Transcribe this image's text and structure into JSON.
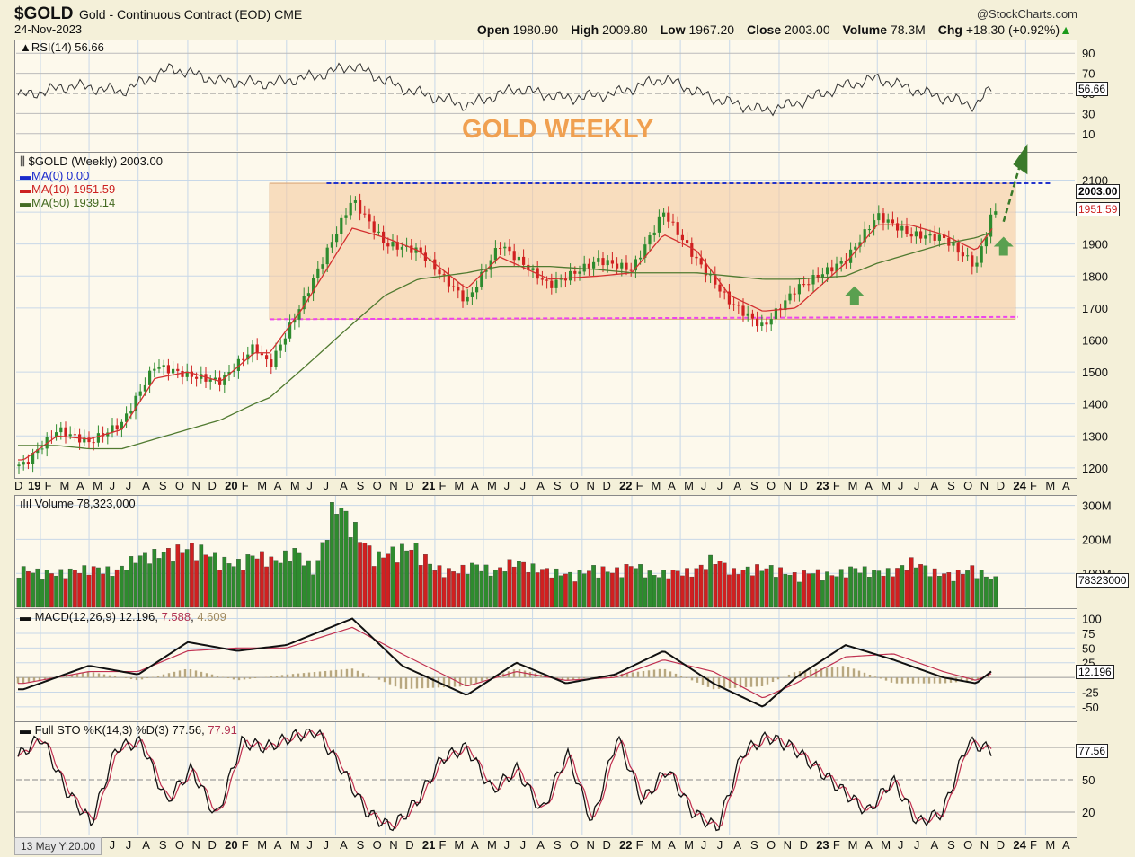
{
  "header": {
    "symbol": "$GOLD",
    "description": "Gold - Continuous Contract (EOD)",
    "exchange": "CME",
    "date": "24-Nov-2023",
    "brand": "@StockCharts.com",
    "open_label": "Open",
    "open": "1980.90",
    "high_label": "High",
    "high": "2009.80",
    "low_label": "Low",
    "low": "1967.20",
    "close_label": "Close",
    "close": "2003.00",
    "volume_label": "Volume",
    "volume": "78.3M",
    "chg_label": "Chg",
    "chg": "+18.30 (+0.92%)"
  },
  "colors": {
    "up": "#2e8b2e",
    "down": "#d02020",
    "ma10": "#d33030",
    "ma50": "#507a30",
    "range": "#f5c9a0",
    "resistance": "#2233cc",
    "support": "#ee44ee",
    "arrow": "#5aa050"
  },
  "chart_data": [
    {
      "type": "line",
      "panel": "RSI",
      "legend": "RSI(14) 56.66",
      "yticks": [
        90,
        70,
        50,
        30,
        10
      ],
      "ylim": [
        0,
        100
      ],
      "last": "56.66",
      "x": [
        "2018-12",
        "2019-03",
        "2019-06",
        "2019-09",
        "2019-12",
        "2020-03",
        "2020-06",
        "2020-08",
        "2020-11",
        "2021-03",
        "2021-06",
        "2021-09",
        "2021-12",
        "2022-03",
        "2022-06",
        "2022-09",
        "2022-11",
        "2023-02",
        "2023-04",
        "2023-07",
        "2023-10",
        "2023-11"
      ],
      "values": [
        48,
        58,
        52,
        75,
        62,
        60,
        68,
        78,
        55,
        38,
        55,
        45,
        50,
        65,
        45,
        33,
        40,
        58,
        65,
        50,
        38,
        57
      ]
    },
    {
      "type": "candlestick",
      "panel": "Price",
      "title": "GOLD WEEKLY",
      "legend": [
        "$GOLD (Weekly) 2003.00",
        "MA(0) 0.00",
        "MA(10) 1951.59",
        "MA(50) 1939.14"
      ],
      "yticks": [
        2100,
        2000,
        1900,
        1800,
        1700,
        1600,
        1500,
        1400,
        1300,
        1200
      ],
      "ylim": [
        1180,
        2180
      ],
      "last_price": "2003.00",
      "last_ma": "1951.59",
      "resistance": 2090,
      "support": 1665,
      "x": [
        "2018-12",
        "2019-02",
        "2019-04",
        "2019-06",
        "2019-08",
        "2019-10",
        "2019-12",
        "2020-02",
        "2020-03",
        "2020-05",
        "2020-08",
        "2020-10",
        "2020-12",
        "2021-03",
        "2021-05",
        "2021-08",
        "2021-11",
        "2022-01",
        "2022-03",
        "2022-05",
        "2022-07",
        "2022-09",
        "2022-11",
        "2023-02",
        "2023-04",
        "2023-06",
        "2023-08",
        "2023-10",
        "2023-11"
      ],
      "close": [
        1210,
        1320,
        1280,
        1340,
        1520,
        1490,
        1470,
        1580,
        1520,
        1720,
        2040,
        1900,
        1880,
        1720,
        1900,
        1770,
        1850,
        1820,
        2000,
        1850,
        1720,
        1640,
        1760,
        1850,
        1990,
        1930,
        1920,
        1830,
        2003
      ],
      "ma10": [
        1225,
        1300,
        1290,
        1320,
        1480,
        1500,
        1470,
        1560,
        1560,
        1700,
        1950,
        1920,
        1880,
        1760,
        1860,
        1790,
        1800,
        1810,
        1930,
        1880,
        1740,
        1690,
        1700,
        1840,
        1960,
        1960,
        1930,
        1880,
        1951
      ],
      "ma50": [
        1270,
        1270,
        1260,
        1260,
        1290,
        1320,
        1350,
        1400,
        1420,
        1510,
        1650,
        1740,
        1790,
        1810,
        1830,
        1830,
        1820,
        1810,
        1810,
        1810,
        1800,
        1790,
        1790,
        1800,
        1840,
        1870,
        1900,
        1920,
        1939
      ]
    },
    {
      "type": "bar",
      "panel": "Volume",
      "legend": "Volume 78,323,000",
      "yticks": [
        "300M",
        "200M",
        "100M"
      ],
      "ylim": [
        0,
        320
      ],
      "last": "78323000",
      "values": [
        110,
        100,
        95,
        105,
        110,
        100,
        140,
        150,
        160,
        170,
        140,
        120,
        150,
        130,
        160,
        100,
        300,
        220,
        140,
        160,
        170,
        110,
        100,
        120,
        100,
        130,
        110,
        100,
        90,
        110,
        100,
        120,
        90,
        100,
        100,
        140,
        100,
        110,
        110,
        90,
        100,
        90,
        110,
        100,
        100,
        130,
        100,
        90,
        110,
        80
      ]
    },
    {
      "type": "line",
      "panel": "MACD",
      "legend": [
        "MACD(12,26,9)",
        "12.196",
        "7.588",
        "4.609"
      ],
      "yticks": [
        100,
        75,
        50,
        25,
        0,
        -25,
        -50
      ],
      "ylim": [
        -70,
        110
      ],
      "last": "12.196",
      "x": [
        "2018-12",
        "2019-04",
        "2019-07",
        "2019-10",
        "2020-01",
        "2020-04",
        "2020-08",
        "2020-11",
        "2021-03",
        "2021-06",
        "2021-09",
        "2021-12",
        "2022-03",
        "2022-06",
        "2022-09",
        "2022-11",
        "2023-02",
        "2023-05",
        "2023-08",
        "2023-10",
        "2023-11"
      ],
      "macd": [
        -20,
        20,
        5,
        60,
        45,
        55,
        100,
        20,
        -30,
        25,
        -10,
        5,
        45,
        -10,
        -50,
        0,
        55,
        30,
        0,
        -10,
        12.2
      ],
      "signal": [
        -10,
        10,
        10,
        45,
        50,
        50,
        85,
        40,
        -15,
        10,
        -5,
        0,
        30,
        10,
        -35,
        -10,
        35,
        40,
        10,
        -5,
        7.6
      ]
    },
    {
      "type": "line",
      "panel": "Stochastic",
      "legend": [
        "Full STO %K(14,3) %D(3)",
        "77.56",
        "77.91"
      ],
      "yticks": [
        80,
        50,
        20
      ],
      "ylim": [
        0,
        100
      ],
      "last": "77.56",
      "k": [
        70,
        90,
        40,
        10,
        80,
        85,
        30,
        60,
        15,
        85,
        80,
        90,
        95,
        60,
        20,
        5,
        30,
        70,
        80,
        40,
        60,
        20,
        75,
        10,
        90,
        30,
        60,
        20,
        5,
        75,
        90,
        80,
        60,
        40,
        20,
        50,
        10,
        20,
        85,
        77
      ]
    }
  ],
  "axis": {
    "months": [
      "D",
      "19",
      "F",
      "M",
      "A",
      "M",
      "J",
      "J",
      "A",
      "S",
      "O",
      "N",
      "D",
      "20",
      "F",
      "M",
      "A",
      "M",
      "J",
      "J",
      "A",
      "S",
      "O",
      "N",
      "D",
      "21",
      "F",
      "M",
      "A",
      "M",
      "J",
      "J",
      "A",
      "S",
      "O",
      "N",
      "D",
      "22",
      "F",
      "M",
      "A",
      "M",
      "J",
      "J",
      "A",
      "S",
      "O",
      "N",
      "D",
      "23",
      "F",
      "M",
      "A",
      "M",
      "J",
      "J",
      "A",
      "S",
      "O",
      "N",
      "D",
      "24",
      "F",
      "M",
      "A"
    ],
    "months_bottom": [
      "J",
      "J",
      "A",
      "S",
      "O",
      "N",
      "D",
      "20",
      "F",
      "M",
      "A",
      "M",
      "J",
      "J",
      "A",
      "S",
      "O",
      "N",
      "D",
      "21",
      "F",
      "M",
      "A",
      "M",
      "J",
      "J",
      "A",
      "S",
      "O",
      "N",
      "D",
      "22",
      "F",
      "M",
      "A",
      "M",
      "J",
      "J",
      "A",
      "S",
      "O",
      "N",
      "D",
      "23",
      "F",
      "M",
      "A",
      "M",
      "J",
      "J",
      "A",
      "S",
      "O",
      "N",
      "D",
      "24",
      "F",
      "M",
      "A"
    ],
    "footer": "13 May Y:20.00"
  }
}
